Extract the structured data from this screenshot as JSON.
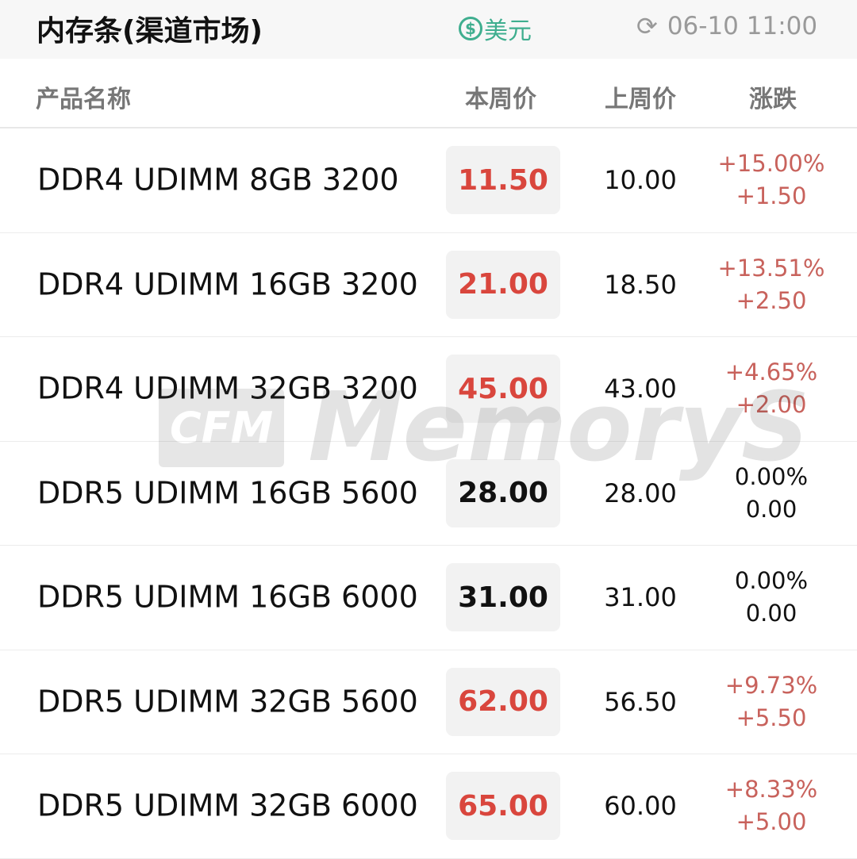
{
  "header": {
    "title": "内存条(渠道市场)",
    "currency_icon": "dollar-circle-icon",
    "currency": "美元",
    "refresh_icon": "refresh-icon",
    "timestamp": "06-10 11:00"
  },
  "columns": {
    "name": "产品名称",
    "this_week": "本周价",
    "last_week": "上周价",
    "change": "涨跌"
  },
  "colors": {
    "up": "#d9463d",
    "flat": "#111111",
    "accent": "#3fae8f"
  },
  "watermark": {
    "logo": "CFM",
    "text": "MemoryS"
  },
  "rows": [
    {
      "name": "DDR4 UDIMM 8GB 3200",
      "price": "11.50",
      "last": "10.00",
      "pct": "+15.00%",
      "diff": "+1.50",
      "trend": "up"
    },
    {
      "name": "DDR4 UDIMM 16GB 3200",
      "price": "21.00",
      "last": "18.50",
      "pct": "+13.51%",
      "diff": "+2.50",
      "trend": "up"
    },
    {
      "name": "DDR4 UDIMM 32GB 3200",
      "price": "45.00",
      "last": "43.00",
      "pct": "+4.65%",
      "diff": "+2.00",
      "trend": "up"
    },
    {
      "name": "DDR5 UDIMM 16GB 5600",
      "price": "28.00",
      "last": "28.00",
      "pct": "0.00%",
      "diff": "0.00",
      "trend": "flat"
    },
    {
      "name": "DDR5 UDIMM 16GB 6000",
      "price": "31.00",
      "last": "31.00",
      "pct": "0.00%",
      "diff": "0.00",
      "trend": "flat"
    },
    {
      "name": "DDR5 UDIMM 32GB 5600",
      "price": "62.00",
      "last": "56.50",
      "pct": "+9.73%",
      "diff": "+5.50",
      "trend": "up"
    },
    {
      "name": "DDR5 UDIMM 32GB 6000",
      "price": "65.00",
      "last": "60.00",
      "pct": "+8.33%",
      "diff": "+5.00",
      "trend": "up"
    }
  ]
}
